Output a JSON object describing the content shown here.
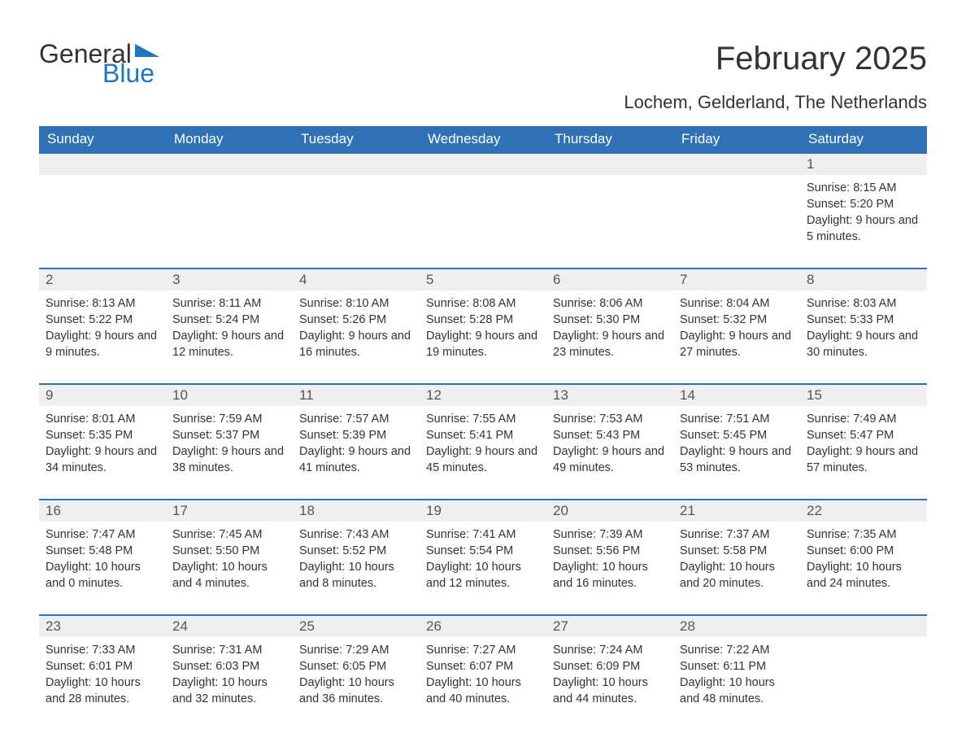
{
  "logo": {
    "text1": "General",
    "text2": "Blue",
    "tri_color": "#2276bd"
  },
  "title": "February 2025",
  "location": "Lochem, Gelderland, The Netherlands",
  "colors": {
    "header_bg": "#2f71b4",
    "header_text": "#ffffff",
    "daynum_bg": "#efefef",
    "rule": "#2f71b4",
    "body_text": "#333333"
  },
  "day_headers": [
    "Sunday",
    "Monday",
    "Tuesday",
    "Wednesday",
    "Thursday",
    "Friday",
    "Saturday"
  ],
  "weeks": [
    [
      {
        "n": "",
        "sunrise": "",
        "sunset": "",
        "daylight": ""
      },
      {
        "n": "",
        "sunrise": "",
        "sunset": "",
        "daylight": ""
      },
      {
        "n": "",
        "sunrise": "",
        "sunset": "",
        "daylight": ""
      },
      {
        "n": "",
        "sunrise": "",
        "sunset": "",
        "daylight": ""
      },
      {
        "n": "",
        "sunrise": "",
        "sunset": "",
        "daylight": ""
      },
      {
        "n": "",
        "sunrise": "",
        "sunset": "",
        "daylight": ""
      },
      {
        "n": "1",
        "sunrise": "Sunrise: 8:15 AM",
        "sunset": "Sunset: 5:20 PM",
        "daylight": "Daylight: 9 hours and 5 minutes."
      }
    ],
    [
      {
        "n": "2",
        "sunrise": "Sunrise: 8:13 AM",
        "sunset": "Sunset: 5:22 PM",
        "daylight": "Daylight: 9 hours and 9 minutes."
      },
      {
        "n": "3",
        "sunrise": "Sunrise: 8:11 AM",
        "sunset": "Sunset: 5:24 PM",
        "daylight": "Daylight: 9 hours and 12 minutes."
      },
      {
        "n": "4",
        "sunrise": "Sunrise: 8:10 AM",
        "sunset": "Sunset: 5:26 PM",
        "daylight": "Daylight: 9 hours and 16 minutes."
      },
      {
        "n": "5",
        "sunrise": "Sunrise: 8:08 AM",
        "sunset": "Sunset: 5:28 PM",
        "daylight": "Daylight: 9 hours and 19 minutes."
      },
      {
        "n": "6",
        "sunrise": "Sunrise: 8:06 AM",
        "sunset": "Sunset: 5:30 PM",
        "daylight": "Daylight: 9 hours and 23 minutes."
      },
      {
        "n": "7",
        "sunrise": "Sunrise: 8:04 AM",
        "sunset": "Sunset: 5:32 PM",
        "daylight": "Daylight: 9 hours and 27 minutes."
      },
      {
        "n": "8",
        "sunrise": "Sunrise: 8:03 AM",
        "sunset": "Sunset: 5:33 PM",
        "daylight": "Daylight: 9 hours and 30 minutes."
      }
    ],
    [
      {
        "n": "9",
        "sunrise": "Sunrise: 8:01 AM",
        "sunset": "Sunset: 5:35 PM",
        "daylight": "Daylight: 9 hours and 34 minutes."
      },
      {
        "n": "10",
        "sunrise": "Sunrise: 7:59 AM",
        "sunset": "Sunset: 5:37 PM",
        "daylight": "Daylight: 9 hours and 38 minutes."
      },
      {
        "n": "11",
        "sunrise": "Sunrise: 7:57 AM",
        "sunset": "Sunset: 5:39 PM",
        "daylight": "Daylight: 9 hours and 41 minutes."
      },
      {
        "n": "12",
        "sunrise": "Sunrise: 7:55 AM",
        "sunset": "Sunset: 5:41 PM",
        "daylight": "Daylight: 9 hours and 45 minutes."
      },
      {
        "n": "13",
        "sunrise": "Sunrise: 7:53 AM",
        "sunset": "Sunset: 5:43 PM",
        "daylight": "Daylight: 9 hours and 49 minutes."
      },
      {
        "n": "14",
        "sunrise": "Sunrise: 7:51 AM",
        "sunset": "Sunset: 5:45 PM",
        "daylight": "Daylight: 9 hours and 53 minutes."
      },
      {
        "n": "15",
        "sunrise": "Sunrise: 7:49 AM",
        "sunset": "Sunset: 5:47 PM",
        "daylight": "Daylight: 9 hours and 57 minutes."
      }
    ],
    [
      {
        "n": "16",
        "sunrise": "Sunrise: 7:47 AM",
        "sunset": "Sunset: 5:48 PM",
        "daylight": "Daylight: 10 hours and 0 minutes."
      },
      {
        "n": "17",
        "sunrise": "Sunrise: 7:45 AM",
        "sunset": "Sunset: 5:50 PM",
        "daylight": "Daylight: 10 hours and 4 minutes."
      },
      {
        "n": "18",
        "sunrise": "Sunrise: 7:43 AM",
        "sunset": "Sunset: 5:52 PM",
        "daylight": "Daylight: 10 hours and 8 minutes."
      },
      {
        "n": "19",
        "sunrise": "Sunrise: 7:41 AM",
        "sunset": "Sunset: 5:54 PM",
        "daylight": "Daylight: 10 hours and 12 minutes."
      },
      {
        "n": "20",
        "sunrise": "Sunrise: 7:39 AM",
        "sunset": "Sunset: 5:56 PM",
        "daylight": "Daylight: 10 hours and 16 minutes."
      },
      {
        "n": "21",
        "sunrise": "Sunrise: 7:37 AM",
        "sunset": "Sunset: 5:58 PM",
        "daylight": "Daylight: 10 hours and 20 minutes."
      },
      {
        "n": "22",
        "sunrise": "Sunrise: 7:35 AM",
        "sunset": "Sunset: 6:00 PM",
        "daylight": "Daylight: 10 hours and 24 minutes."
      }
    ],
    [
      {
        "n": "23",
        "sunrise": "Sunrise: 7:33 AM",
        "sunset": "Sunset: 6:01 PM",
        "daylight": "Daylight: 10 hours and 28 minutes."
      },
      {
        "n": "24",
        "sunrise": "Sunrise: 7:31 AM",
        "sunset": "Sunset: 6:03 PM",
        "daylight": "Daylight: 10 hours and 32 minutes."
      },
      {
        "n": "25",
        "sunrise": "Sunrise: 7:29 AM",
        "sunset": "Sunset: 6:05 PM",
        "daylight": "Daylight: 10 hours and 36 minutes."
      },
      {
        "n": "26",
        "sunrise": "Sunrise: 7:27 AM",
        "sunset": "Sunset: 6:07 PM",
        "daylight": "Daylight: 10 hours and 40 minutes."
      },
      {
        "n": "27",
        "sunrise": "Sunrise: 7:24 AM",
        "sunset": "Sunset: 6:09 PM",
        "daylight": "Daylight: 10 hours and 44 minutes."
      },
      {
        "n": "28",
        "sunrise": "Sunrise: 7:22 AM",
        "sunset": "Sunset: 6:11 PM",
        "daylight": "Daylight: 10 hours and 48 minutes."
      },
      {
        "n": "",
        "sunrise": "",
        "sunset": "",
        "daylight": ""
      }
    ]
  ]
}
